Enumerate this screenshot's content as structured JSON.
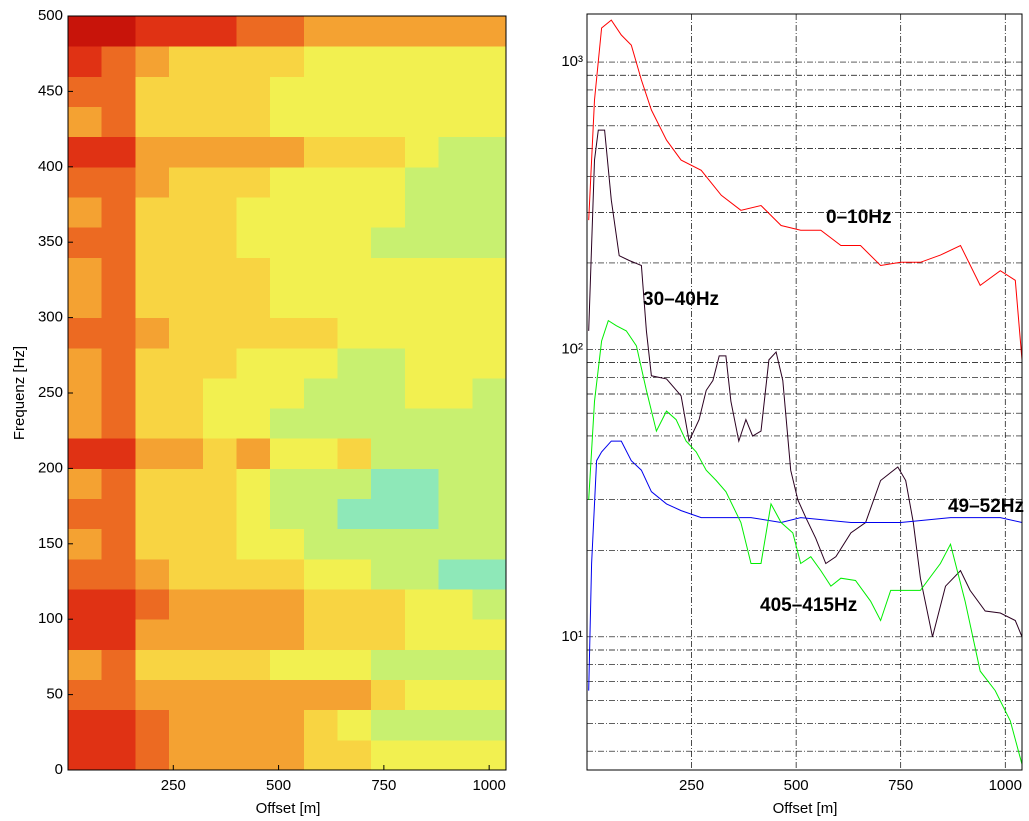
{
  "chart_data": [
    {
      "type": "heatmap",
      "xlabel": "Offset [m]",
      "ylabel": "Frequenz [Hz]",
      "xlim": [
        0,
        1040
      ],
      "ylim": [
        0,
        500
      ],
      "xticks": [
        250,
        500,
        750,
        1000
      ],
      "yticks": [
        0,
        50,
        100,
        150,
        200,
        250,
        300,
        350,
        400,
        450,
        500
      ],
      "x_edges": [
        0,
        80,
        160,
        240,
        320,
        400,
        480,
        560,
        640,
        720,
        800,
        880,
        960,
        1040
      ],
      "y_edges": [
        0,
        20,
        40,
        60,
        80,
        100,
        120,
        140,
        160,
        180,
        200,
        220,
        240,
        260,
        280,
        300,
        320,
        340,
        360,
        380,
        400,
        420,
        440,
        460,
        480,
        500
      ],
      "colorscale": {
        "min": 2,
        "colors": [
          "#8ee8b8",
          "#c8f070",
          "#f2f050",
          "#f8d442",
          "#f4a232",
          "#ec6a22",
          "#e03214",
          "#c8140a"
        ]
      },
      "z": [
        [
          8,
          8,
          7,
          6,
          6,
          6,
          6,
          5,
          5,
          4,
          4,
          4,
          4
        ],
        [
          8,
          8,
          7,
          6,
          6,
          6,
          6,
          5,
          4,
          3,
          3,
          3,
          3
        ],
        [
          7,
          7,
          6,
          6,
          6,
          6,
          6,
          6,
          6,
          5,
          4,
          4,
          4
        ],
        [
          6,
          7,
          5,
          5,
          5,
          5,
          4,
          4,
          4,
          3,
          3,
          3,
          3
        ],
        [
          8,
          8,
          6,
          6,
          6,
          6,
          6,
          5,
          5,
          5,
          4,
          4,
          4
        ],
        [
          8,
          8,
          7,
          6,
          6,
          6,
          6,
          5,
          5,
          5,
          4,
          4,
          3
        ],
        [
          7,
          7,
          6,
          5,
          5,
          5,
          5,
          4,
          4,
          3,
          3,
          2,
          2
        ],
        [
          6,
          7,
          5,
          5,
          5,
          4,
          4,
          3,
          3,
          3,
          3,
          3,
          3
        ],
        [
          7,
          7,
          5,
          5,
          5,
          4,
          3,
          3,
          2,
          2,
          2,
          3,
          3
        ],
        [
          6,
          7,
          5,
          5,
          5,
          4,
          3,
          3,
          3,
          2,
          2,
          3,
          3
        ],
        [
          8,
          8,
          6,
          6,
          5,
          6,
          4,
          4,
          5,
          3,
          3,
          3,
          3
        ],
        [
          6,
          7,
          5,
          5,
          4,
          4,
          3,
          3,
          3,
          3,
          3,
          3,
          3
        ],
        [
          6,
          7,
          5,
          5,
          4,
          4,
          4,
          3,
          3,
          3,
          4,
          4,
          3
        ],
        [
          6,
          7,
          5,
          5,
          5,
          4,
          4,
          4,
          3,
          3,
          4,
          4,
          4
        ],
        [
          7,
          7,
          6,
          5,
          5,
          5,
          5,
          5,
          4,
          4,
          4,
          4,
          4
        ],
        [
          6,
          7,
          5,
          5,
          5,
          5,
          4,
          4,
          4,
          4,
          4,
          4,
          4
        ],
        [
          6,
          7,
          5,
          5,
          5,
          5,
          4,
          4,
          4,
          4,
          4,
          4,
          4
        ],
        [
          7,
          7,
          5,
          5,
          5,
          4,
          4,
          4,
          4,
          3,
          3,
          3,
          3
        ],
        [
          6,
          7,
          5,
          5,
          5,
          4,
          4,
          4,
          4,
          4,
          3,
          3,
          3
        ],
        [
          7,
          7,
          6,
          5,
          5,
          5,
          4,
          4,
          4,
          4,
          3,
          3,
          3
        ],
        [
          8,
          8,
          6,
          6,
          6,
          6,
          6,
          5,
          5,
          5,
          4,
          3,
          3
        ],
        [
          6,
          7,
          5,
          5,
          5,
          5,
          4,
          4,
          4,
          4,
          4,
          4,
          4
        ],
        [
          7,
          7,
          5,
          5,
          5,
          5,
          4,
          4,
          4,
          4,
          4,
          4,
          4
        ],
        [
          8,
          7,
          6,
          5,
          5,
          5,
          5,
          4,
          4,
          4,
          4,
          4,
          4
        ],
        [
          9,
          9,
          8,
          8,
          8,
          7,
          7,
          6,
          6,
          6,
          6,
          6,
          6
        ]
      ]
    },
    {
      "type": "line",
      "xlabel": "Offset [m]",
      "yscale": "log",
      "grid": true,
      "xlim": [
        0,
        1040
      ],
      "ylim": [
        3.44,
        1470
      ],
      "xticks": [
        250,
        500,
        750,
        1000
      ],
      "yticks": [
        {
          "value": 10,
          "label": "10¹"
        },
        {
          "value": 100,
          "label": "10²"
        },
        {
          "value": 1000,
          "label": "10³"
        }
      ],
      "yminorticks": [
        4,
        5,
        6,
        7,
        8,
        9,
        20,
        30,
        40,
        50,
        60,
        70,
        80,
        90,
        200,
        300,
        400,
        500,
        600,
        700,
        800,
        900
      ],
      "series": [
        {
          "name": "0–10Hz",
          "color": "#ff0000",
          "x": [
            4,
            18,
            35,
            58,
            82,
            106,
            130,
            154,
            190,
            225,
            273,
            321,
            368,
            416,
            464,
            511,
            559,
            607,
            654,
            702,
            750,
            797,
            845,
            893,
            940,
            988,
            1024,
            1040
          ],
          "values": [
            282,
            738,
            1314,
            1400,
            1242,
            1146,
            866,
            681,
            535,
            456,
            420,
            344,
            305,
            317,
            270,
            260,
            260,
            230,
            230,
            196,
            201,
            201,
            213,
            230,
            167,
            188,
            174,
            92
          ]
        },
        {
          "name": "30–40Hz",
          "color": "#2a0020",
          "x": [
            4,
            18,
            27,
            42,
            58,
            77,
            101,
            130,
            142,
            154,
            190,
            225,
            244,
            268,
            285,
            301,
            316,
            332,
            344,
            363,
            380,
            396,
            416,
            435,
            452,
            468,
            487,
            504,
            523,
            547,
            571,
            595,
            631,
            666,
            702,
            743,
            762,
            780,
            797,
            826,
            857,
            893,
            916,
            952,
            988,
            1024,
            1040
          ],
          "values": [
            116,
            456,
            580,
            580,
            331,
            212,
            204,
            196,
            116,
            81,
            79,
            69,
            48,
            57,
            72,
            78,
            95,
            95,
            66,
            48,
            57,
            50,
            52,
            92,
            98,
            78,
            38,
            30,
            26,
            22,
            18,
            19,
            23,
            25,
            35,
            39,
            35,
            25,
            16,
            10,
            15,
            17,
            14.5,
            12.3,
            12.1,
            11.4,
            10
          ]
        },
        {
          "name": "49–52Hz",
          "color": "#0000ee",
          "x": [
            4,
            11,
            23,
            35,
            58,
            82,
            106,
            130,
            154,
            190,
            225,
            273,
            392,
            464,
            511,
            631,
            750,
            869,
            988,
            1040
          ],
          "values": [
            6.5,
            18,
            41,
            44,
            48,
            48,
            41,
            38,
            32,
            29,
            27.5,
            26,
            26,
            25,
            26,
            25,
            25,
            26,
            26,
            25
          ]
        },
        {
          "name": "405–415Hz",
          "color": "#00ee00",
          "x": [
            4,
            18,
            35,
            51,
            70,
            94,
            118,
            142,
            166,
            190,
            213,
            237,
            261,
            285,
            309,
            332,
            368,
            392,
            416,
            440,
            464,
            492,
            511,
            535,
            559,
            583,
            607,
            642,
            678,
            702,
            726,
            762,
            797,
            845,
            869,
            904,
            940,
            976,
            1012,
            1040
          ],
          "values": [
            30,
            66,
            107,
            126,
            121,
            116,
            103,
            72,
            52,
            61,
            57,
            48,
            44,
            38,
            35,
            32,
            25,
            18,
            18,
            29,
            25,
            23,
            18,
            19,
            17,
            15,
            16,
            15.7,
            13.3,
            11.4,
            14.5,
            14.5,
            14.5,
            18,
            21,
            13.3,
            7.6,
            6.5,
            5.1,
            3.6
          ]
        }
      ]
    }
  ]
}
